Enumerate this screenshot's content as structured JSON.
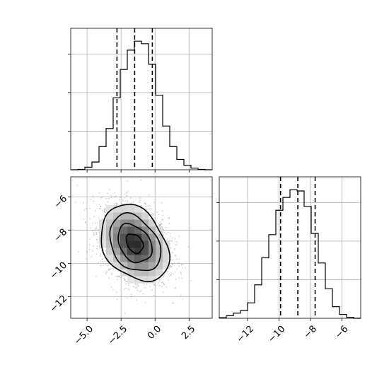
{
  "chart_data": {
    "type": "corner",
    "grid": true,
    "params": [
      {
        "xlim": [
          -6.2,
          4.2
        ],
        "xticks": [
          -5.0,
          -2.5,
          0.0,
          2.5
        ],
        "xtick_labels": [
          "−5.0",
          "−2.5",
          "0.0",
          "2.5"
        ],
        "quantiles": [
          -2.8,
          -1.5,
          -0.2
        ],
        "hist_edges": [
          -6.2,
          -5.68,
          -5.16,
          -4.64,
          -4.12,
          -3.6,
          -3.08,
          -2.56,
          -2.04,
          -1.52,
          -1.0,
          -0.48,
          0.04,
          0.56,
          1.08,
          1.6,
          2.12,
          2.64,
          3.16,
          3.68,
          4.2
        ],
        "hist_counts": [
          0,
          0.003,
          0.02,
          0.06,
          0.18,
          0.32,
          0.56,
          0.78,
          0.93,
          1.0,
          0.98,
          0.82,
          0.58,
          0.34,
          0.18,
          0.08,
          0.035,
          0.012,
          0.003,
          0
        ]
      },
      {
        "xlim": [
          -13.8,
          -4.8
        ],
        "xticks": [
          -12,
          -10,
          -8,
          -6
        ],
        "xtick_labels": [
          "−12",
          "−10",
          "−8",
          "−6"
        ],
        "ylim": [
          -13.3,
          -4.8
        ],
        "yticks": [
          -6,
          -8,
          -10,
          -12
        ],
        "ytick_labels": [
          "−6",
          "−8",
          "−10",
          "−12"
        ],
        "quantiles": [
          -9.9,
          -8.8,
          -7.7
        ],
        "hist_edges": [
          -13.8,
          -13.35,
          -12.9,
          -12.45,
          -12.0,
          -11.55,
          -11.1,
          -10.65,
          -10.2,
          -9.75,
          -9.3,
          -8.85,
          -8.4,
          -7.95,
          -7.5,
          -7.05,
          -6.6,
          -6.15,
          -5.7,
          -5.25,
          -4.8
        ],
        "hist_counts": [
          0.005,
          0.02,
          0.04,
          0.06,
          0.12,
          0.26,
          0.47,
          0.65,
          0.84,
          0.94,
          1.0,
          0.99,
          0.87,
          0.66,
          0.43,
          0.23,
          0.09,
          0.03,
          0.008,
          0
        ]
      }
    ],
    "joint": {
      "x_param": 0,
      "y_param": 1,
      "mean": [
        -1.5,
        -8.8
      ],
      "sd": [
        1.25,
        1.15
      ],
      "correlation": -0.3,
      "contour_levels_sigma": [
        0.5,
        1.0,
        1.5,
        2.0
      ]
    }
  }
}
